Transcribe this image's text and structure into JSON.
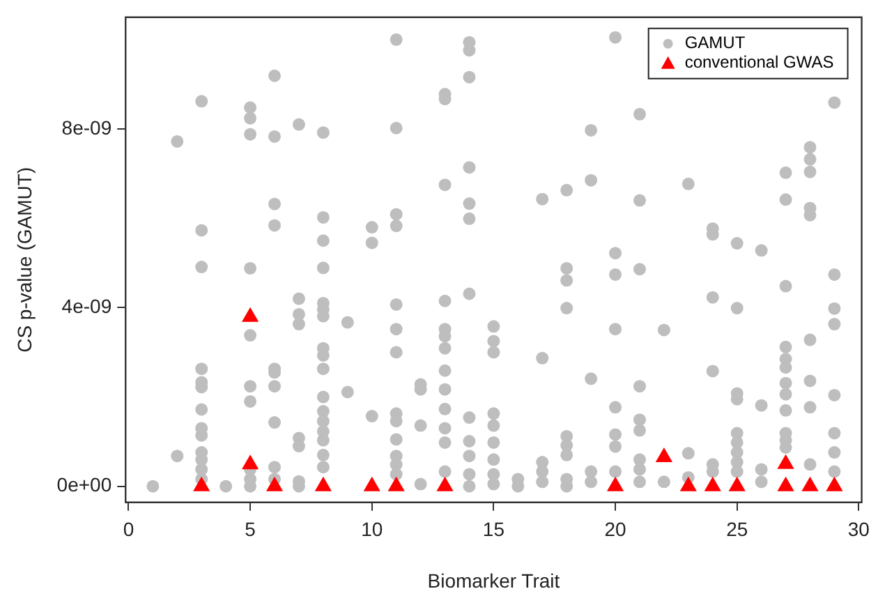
{
  "chart_data": {
    "type": "scatter",
    "xlabel": "Biomarker Trait",
    "ylabel": "CS p-value (GAMUT)",
    "xlim": [
      -0.12,
      30.12
    ],
    "ylim": [
      -3.6e-10,
      1.05e-08
    ],
    "xticks": [
      0,
      5,
      10,
      15,
      20,
      25,
      30
    ],
    "yticks": [
      {
        "value": 0,
        "label": "0e+00"
      },
      {
        "value": 4e-09,
        "label": "4e-09"
      },
      {
        "value": 8e-09,
        "label": "8e-09"
      }
    ],
    "grid": false,
    "legend": "top right",
    "series": [
      {
        "name": "GAMUT",
        "color": "#bebebe",
        "marker": "circle",
        "x": [
          1,
          2,
          2,
          3,
          3,
          3,
          3,
          3,
          3,
          3,
          3,
          3,
          3,
          3,
          3,
          3,
          4,
          5,
          5,
          5,
          5,
          5,
          5,
          5,
          5,
          5,
          5,
          6,
          6,
          6,
          6,
          6,
          6,
          6,
          6,
          6,
          6,
          7,
          7,
          7,
          7,
          7,
          7,
          7,
          7,
          8,
          8,
          8,
          8,
          8,
          8,
          8,
          8,
          8,
          8,
          8,
          8,
          8,
          8,
          8,
          8,
          8,
          9,
          9,
          10,
          10,
          10,
          11,
          11,
          11,
          11,
          11,
          11,
          11,
          11,
          11,
          11,
          11,
          11,
          11,
          12,
          12,
          12,
          12,
          13,
          13,
          13,
          13,
          13,
          13,
          13,
          13,
          13,
          13,
          13,
          13,
          13,
          14,
          14,
          14,
          14,
          14,
          14,
          14,
          14,
          14,
          14,
          14,
          14,
          15,
          15,
          15,
          15,
          15,
          15,
          15,
          15,
          15,
          16,
          16,
          17,
          17,
          17,
          17,
          17,
          18,
          18,
          18,
          18,
          18,
          18,
          18,
          18,
          18,
          19,
          19,
          19,
          19,
          19,
          20,
          20,
          20,
          20,
          20,
          20,
          20,
          20,
          21,
          21,
          21,
          21,
          21,
          21,
          21,
          21,
          21,
          22,
          22,
          23,
          23,
          23,
          24,
          24,
          24,
          24,
          24,
          24,
          25,
          25,
          25,
          25,
          25,
          25,
          25,
          25,
          25,
          26,
          26,
          26,
          26,
          27,
          27,
          27,
          27,
          27,
          27,
          27,
          27,
          27,
          27,
          27,
          27,
          28,
          28,
          28,
          28,
          28,
          28,
          28,
          28,
          28,
          29,
          29,
          29,
          29,
          29,
          29,
          29,
          29
        ],
        "values": [
          0,
          7.72e-09,
          6.8e-10,
          8.62e-09,
          5.73e-09,
          4.91e-09,
          2.63e-09,
          2.33e-09,
          2.22e-09,
          1.72e-09,
          1.3e-09,
          1.14e-09,
          7.6e-10,
          6e-10,
          3.8e-10,
          1.6e-10,
          0,
          8.48e-09,
          8.24e-09,
          7.88e-09,
          4.88e-09,
          3.38e-09,
          2.24e-09,
          1.9e-09,
          3.8e-10,
          1.6e-10,
          0,
          9.19e-09,
          7.83e-09,
          6.32e-09,
          5.84e-09,
          2.63e-09,
          2.55e-09,
          2.24e-09,
          1.43e-09,
          4.3e-10,
          1.6e-10,
          8.1e-09,
          4.2e-09,
          3.85e-09,
          3.63e-09,
          1.08e-09,
          9e-10,
          1.1e-10,
          0,
          7.92e-09,
          6.02e-09,
          5.5e-09,
          4.89e-09,
          4.1e-09,
          3.96e-09,
          3.81e-09,
          3.09e-09,
          2.93e-09,
          2.63e-09,
          2e-09,
          1.68e-09,
          1.46e-09,
          1.23e-09,
          1.03e-09,
          7e-10,
          4.3e-10,
          3.67e-09,
          2.11e-09,
          5.8e-09,
          5.45e-09,
          1.57e-09,
          1e-08,
          8.02e-09,
          6.09e-09,
          5.83e-09,
          4.07e-09,
          3.52e-09,
          3e-09,
          1.63e-09,
          1.46e-09,
          1.05e-09,
          6.8e-10,
          4.9e-10,
          2.7e-10,
          2.28e-09,
          2.17e-09,
          1.36e-09,
          5e-11,
          8.78e-09,
          8.67e-09,
          6.75e-09,
          4.15e-09,
          3.52e-09,
          3.36e-09,
          3.09e-09,
          2.59e-09,
          2.17e-09,
          1.73e-09,
          1.3e-09,
          9.8e-10,
          3.3e-10,
          9.94e-09,
          9.76e-09,
          9.16e-09,
          7.14e-09,
          6.33e-09,
          5.99e-09,
          4.31e-09,
          1.54e-09,
          1.01e-09,
          6.8e-10,
          2.7e-10,
          0,
          3.58e-09,
          3.25e-09,
          3e-09,
          1.63e-09,
          1.36e-09,
          9.8e-10,
          6e-10,
          2.7e-10,
          5e-11,
          1.6e-10,
          0,
          6.43e-09,
          2.87e-09,
          5.4e-10,
          3.3e-10,
          1e-10,
          6.63e-09,
          4.88e-09,
          4.61e-09,
          3.99e-09,
          1.12e-09,
          9.2e-10,
          7e-10,
          1.6e-10,
          0,
          7.97e-09,
          6.85e-09,
          2.41e-09,
          3.3e-10,
          1e-10,
          1.005e-08,
          5.22e-09,
          4.74e-09,
          3.52e-09,
          1.77e-09,
          1.16e-09,
          8.9e-10,
          3.3e-10,
          8.33e-09,
          6.4e-09,
          4.86e-09,
          2.24e-09,
          1.49e-09,
          1.25e-09,
          6e-10,
          3.8e-10,
          1e-10,
          3.5e-09,
          1e-10,
          6.77e-09,
          7.4e-10,
          2e-10,
          5.77e-09,
          5.64e-09,
          4.23e-09,
          2.58e-09,
          4.9e-10,
          3.3e-10,
          5.44e-09,
          3.99e-09,
          2.08e-09,
          1.95e-09,
          1.19e-09,
          9.8e-10,
          7.6e-10,
          5.4e-10,
          3.3e-10,
          5.28e-09,
          1.81e-09,
          3.8e-10,
          1e-10,
          7.02e-09,
          6.42e-09,
          4.48e-09,
          3.12e-09,
          2.85e-09,
          2.66e-09,
          2.31e-09,
          2.06e-09,
          1.7e-09,
          1.19e-09,
          1.03e-09,
          8.7e-10,
          7.59e-09,
          7.32e-09,
          7.04e-09,
          6.23e-09,
          6.07e-09,
          3.28e-09,
          2.36e-09,
          1.77e-09,
          4.9e-10,
          8.59e-09,
          4.74e-09,
          3.98e-09,
          3.63e-09,
          2.04e-09,
          1.19e-09,
          7.6e-10,
          3.3e-10
        ]
      },
      {
        "name": "conventional GWAS",
        "color": "#ff0000",
        "marker": "triangle",
        "x": [
          3,
          5,
          5,
          6,
          8,
          10,
          11,
          13,
          20,
          22,
          23,
          24,
          25,
          27,
          27,
          28,
          29
        ],
        "values": [
          0,
          3.79e-09,
          4.9e-10,
          0,
          0,
          0,
          0,
          0,
          0,
          6.5e-10,
          0,
          0,
          0,
          5e-10,
          0,
          0,
          0
        ]
      }
    ]
  }
}
